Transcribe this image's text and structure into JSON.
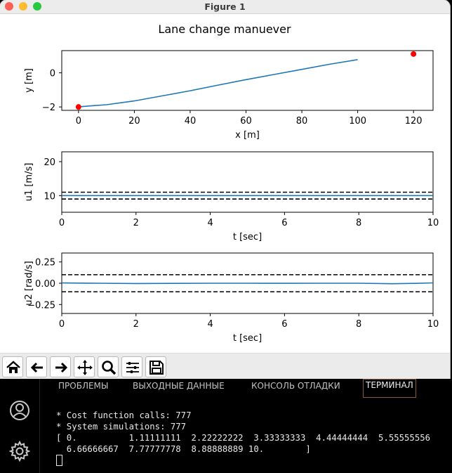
{
  "window": {
    "title": "Figure 1",
    "traffic_lights": {
      "close": "#fe5f57",
      "minimize": "#febc2e",
      "zoom": "#28c840"
    }
  },
  "figure": {
    "suptitle": "Lane change manuever"
  },
  "chart_data": [
    {
      "type": "line",
      "xlabel": "x [m]",
      "ylabel": "y [m]",
      "xlim": [
        -6,
        127
      ],
      "ylim": [
        -2.2,
        1.3
      ],
      "xticks": [
        "0",
        "20",
        "40",
        "60",
        "80",
        "100",
        "120"
      ],
      "yticks": [
        "−2",
        "0"
      ],
      "xtick_values": [
        0,
        20,
        40,
        60,
        80,
        100,
        120
      ],
      "ytick_values": [
        -2,
        0
      ],
      "series": [
        {
          "color": "#1f77b4",
          "x": [
            0,
            5,
            10,
            20,
            30,
            40,
            50,
            60,
            70,
            80,
            90,
            100
          ],
          "y": [
            -2.0,
            -1.93,
            -1.87,
            -1.65,
            -1.35,
            -1.05,
            -0.72,
            -0.4,
            -0.1,
            0.2,
            0.5,
            0.77
          ]
        }
      ],
      "markers": [
        {
          "x": 0,
          "y": -2.0,
          "color": "#ff0000"
        },
        {
          "x": 120,
          "y": 1.1,
          "color": "#ff0000"
        }
      ]
    },
    {
      "type": "line",
      "xlabel": "t [sec]",
      "ylabel": "u1 [m/s]",
      "xlim": [
        0,
        10
      ],
      "ylim": [
        5.1,
        22.9
      ],
      "xticks": [
        "0",
        "2",
        "4",
        "6",
        "8",
        "10"
      ],
      "yticks": [
        "10",
        "20"
      ],
      "xtick_values": [
        0,
        2,
        4,
        6,
        8,
        10
      ],
      "ytick_values": [
        10,
        20
      ],
      "series": [
        {
          "color": "#1f77b4",
          "x": [
            0,
            10
          ],
          "y": [
            10,
            10
          ]
        }
      ],
      "bounds": [
        {
          "y": 11,
          "style": "dashed",
          "color": "#000"
        },
        {
          "y": 9,
          "style": "dashed",
          "color": "#000"
        }
      ]
    },
    {
      "type": "line",
      "xlabel": "t [sec]",
      "ylabel": "u2 [rad/s]",
      "xlim": [
        0,
        10
      ],
      "ylim": [
        -0.355,
        0.355
      ],
      "xticks": [
        "0",
        "2",
        "4",
        "6",
        "8",
        "10"
      ],
      "yticks": [
        "0.25",
        "0.00",
        "−0.25"
      ],
      "xtick_values": [
        0,
        2,
        4,
        6,
        8,
        10
      ],
      "ytick_values": [
        0.25,
        0,
        -0.25
      ],
      "series": [
        {
          "color": "#1f77b4",
          "x": [
            0,
            1,
            2,
            3,
            4,
            5,
            6,
            7,
            8,
            8.9,
            9.5,
            10
          ],
          "y": [
            0.003,
            0.0,
            -0.003,
            -0.002,
            0.0,
            0.0,
            -0.001,
            0.0,
            0.0,
            -0.006,
            -0.002,
            0.004
          ]
        }
      ],
      "bounds": [
        {
          "y": 0.1,
          "style": "dashed",
          "color": "#000"
        },
        {
          "y": -0.1,
          "style": "dashed",
          "color": "#000"
        }
      ]
    }
  ],
  "toolbar": {
    "buttons": [
      "home-icon",
      "back-icon",
      "forward-icon",
      "pan-icon",
      "zoom-icon",
      "configure-subplots-icon",
      "save-icon"
    ]
  },
  "panel": {
    "tabs": [
      "ПРОБЛЕМЫ",
      "ВЫХОДНЫЕ ДАННЫЕ",
      "КОНСОЛЬ ОТЛАДКИ",
      "ТЕРМИНАЛ"
    ],
    "active_tab": "ТЕРМИНАЛ",
    "lines": [
      "* Cost function calls: 777",
      "* System simulations: 777",
      "[ 0.          1.11111111  2.22222222  3.33333333  4.44444444  5.55555556",
      "  6.66666667  7.77777778  8.88888889 10.        ]"
    ]
  },
  "activity": {
    "icons": [
      "account-icon",
      "settings-gear-icon"
    ]
  }
}
